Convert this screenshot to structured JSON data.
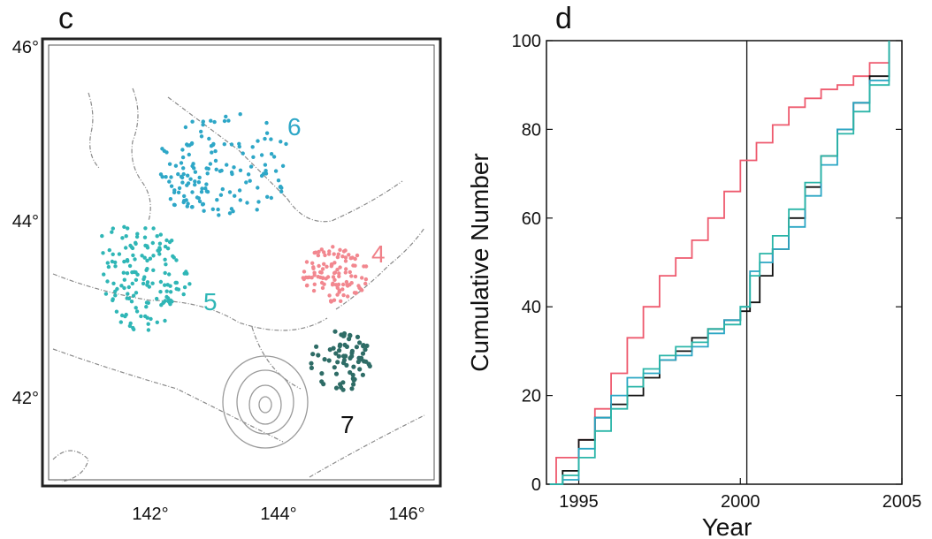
{
  "panel_c": {
    "label": "c",
    "lon_ticks": [
      "142°",
      "144°",
      "146°"
    ],
    "lat_ticks": [
      "46°",
      "44°",
      "42°"
    ],
    "clusters": [
      {
        "label": "6",
        "color": "#2ea7c7"
      },
      {
        "label": "5",
        "color": "#2fb6b6"
      },
      {
        "label": "4",
        "color": "#f2878f"
      },
      {
        "label": "7",
        "color": "#2e6c66"
      }
    ]
  },
  "chart_data": {
    "type": "line",
    "panel_label": "d",
    "xlabel": "Year",
    "ylabel": "Cumulative Number",
    "xlim": [
      1994.0,
      2005.0
    ],
    "ylim": [
      0,
      100
    ],
    "x_ticks": [
      1995,
      2000,
      2005
    ],
    "y_ticks": [
      0,
      20,
      40,
      60,
      80,
      100
    ],
    "vline_x": 2000.2,
    "series": [
      {
        "color": "#ee5a6e",
        "x": [
          1994.1,
          1994.3,
          1995.0,
          1995.5,
          1996.0,
          1996.5,
          1997.0,
          1997.5,
          1998.0,
          1998.5,
          1999.0,
          1999.5,
          2000.0,
          2000.5,
          2001.0,
          2001.5,
          2002.0,
          2002.5,
          2003.0,
          2003.5,
          2004.0,
          2004.6
        ],
        "y": [
          0,
          6,
          10,
          17,
          25,
          33,
          40,
          47,
          51,
          55,
          60,
          66,
          73,
          77,
          81,
          85,
          87,
          89,
          90,
          92,
          95,
          100
        ]
      },
      {
        "color": "#111111",
        "x": [
          1994.1,
          1994.5,
          1995.0,
          1995.5,
          1996.0,
          1996.5,
          1997.0,
          1997.5,
          1998.0,
          1998.5,
          1999.0,
          1999.5,
          2000.0,
          2000.3,
          2000.6,
          2001.0,
          2001.5,
          2002.0,
          2002.5,
          2003.0,
          2003.5,
          2004.0,
          2004.6
        ],
        "y": [
          0,
          3,
          10,
          15,
          18,
          20,
          24,
          28,
          30,
          33,
          35,
          37,
          39,
          41,
          47,
          53,
          60,
          67,
          74,
          80,
          86,
          92,
          100
        ]
      },
      {
        "color": "#2aa6c4",
        "x": [
          1994.1,
          1994.5,
          1995.0,
          1995.5,
          1996.0,
          1996.5,
          1997.0,
          1997.5,
          1998.0,
          1998.5,
          1999.0,
          1999.5,
          2000.0,
          2000.3,
          2000.6,
          2001.0,
          2001.5,
          2002.0,
          2002.5,
          2003.0,
          2003.5,
          2004.0,
          2004.6
        ],
        "y": [
          0,
          1,
          8,
          15,
          20,
          24,
          25,
          28,
          29,
          31,
          34,
          37,
          40,
          48,
          50,
          53,
          58,
          65,
          72,
          80,
          86,
          91,
          100
        ]
      },
      {
        "color": "#2ab5a8",
        "x": [
          1994.1,
          1994.5,
          1995.0,
          1995.5,
          1996.0,
          1996.5,
          1997.0,
          1997.5,
          1998.0,
          1998.5,
          1999.0,
          1999.5,
          2000.0,
          2000.3,
          2000.6,
          2001.0,
          2001.5,
          2002.0,
          2002.5,
          2003.0,
          2003.5,
          2004.0,
          2004.6
        ],
        "y": [
          0,
          2,
          6,
          12,
          17,
          22,
          26,
          29,
          31,
          32,
          35,
          36,
          40,
          47,
          52,
          56,
          62,
          68,
          74,
          79,
          84,
          90,
          100
        ]
      }
    ]
  }
}
